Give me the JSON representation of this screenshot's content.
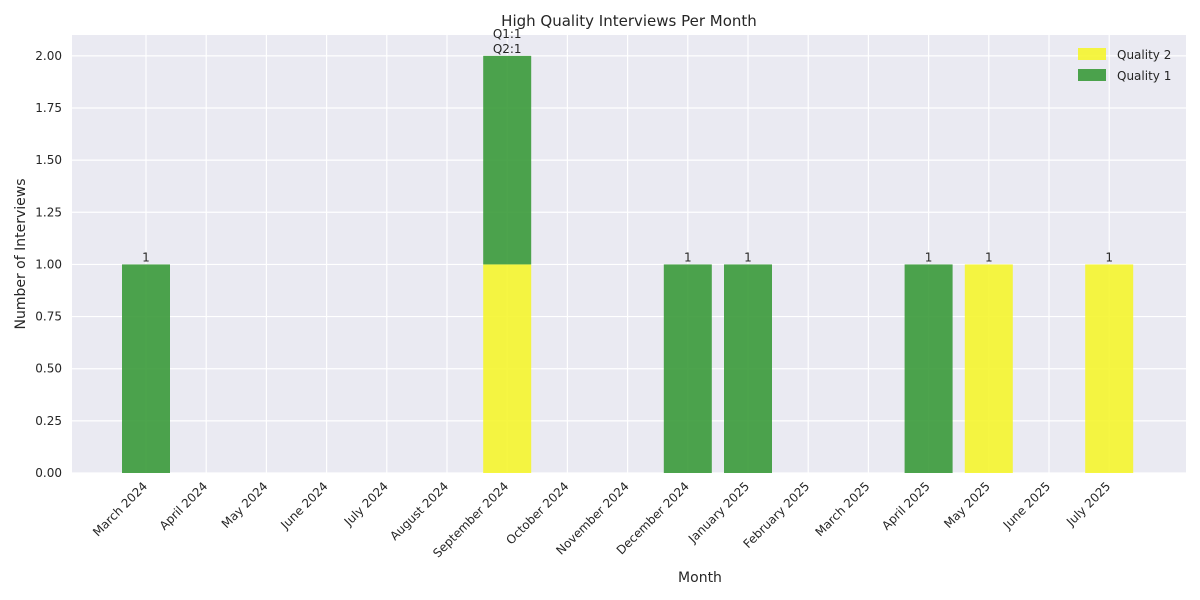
{
  "chart_data": {
    "type": "bar",
    "stacked": true,
    "title": "High Quality Interviews Per Month",
    "xlabel": "Month",
    "ylabel": "Number of Interviews",
    "ylim": [
      0,
      2.1
    ],
    "yticks": [
      "0.00",
      "0.25",
      "0.50",
      "0.75",
      "1.00",
      "1.25",
      "1.50",
      "1.75",
      "2.00"
    ],
    "categories": [
      "March 2024",
      "April 2024",
      "May 2024",
      "June 2024",
      "July 2024",
      "August 2024",
      "September 2024",
      "October 2024",
      "November 2024",
      "December 2024",
      "January 2025",
      "February 2025",
      "March 2025",
      "April 2025",
      "May 2025",
      "June 2025",
      "July 2025"
    ],
    "series": [
      {
        "name": "Quality 2",
        "color": "#f5f52e",
        "values": [
          0,
          0,
          0,
          0,
          0,
          0,
          1,
          0,
          0,
          0,
          0,
          0,
          0,
          0,
          1,
          0,
          1
        ]
      },
      {
        "name": "Quality 1",
        "color": "#3a9a3a",
        "values": [
          1,
          0,
          0,
          0,
          0,
          0,
          1,
          0,
          0,
          1,
          1,
          0,
          0,
          1,
          0,
          0,
          0
        ]
      }
    ],
    "annotations": [
      {
        "category": "March 2024",
        "lines": [
          "1"
        ]
      },
      {
        "category": "September 2024",
        "lines": [
          "Q1:1",
          "Q2:1"
        ]
      },
      {
        "category": "December 2024",
        "lines": [
          "1"
        ]
      },
      {
        "category": "January 2025",
        "lines": [
          "1"
        ]
      },
      {
        "category": "April 2025",
        "lines": [
          "1"
        ]
      },
      {
        "category": "May 2025",
        "lines": [
          "1"
        ]
      },
      {
        "category": "July 2025",
        "lines": [
          "1"
        ]
      }
    ],
    "legend": {
      "position": "top-right",
      "entries": [
        "Quality 2",
        "Quality 1"
      ]
    },
    "grid": true,
    "background": "#eaeaf2"
  }
}
